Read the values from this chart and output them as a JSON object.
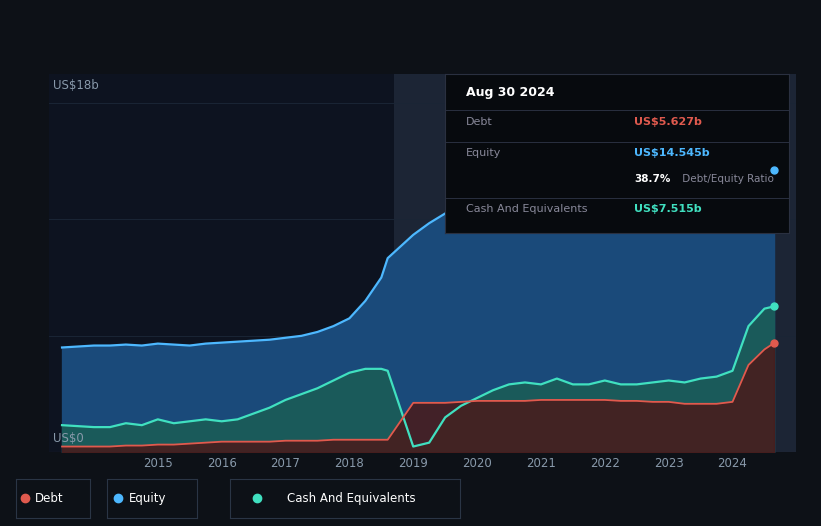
{
  "bg_color": "#0d1117",
  "plot_bg_color": "#0d1320",
  "grid_color": "#1a2535",
  "years": [
    2013.5,
    2014.0,
    2014.25,
    2014.5,
    2014.75,
    2015.0,
    2015.25,
    2015.5,
    2015.75,
    2016.0,
    2016.25,
    2016.5,
    2016.75,
    2017.0,
    2017.25,
    2017.5,
    2017.75,
    2018.0,
    2018.25,
    2018.5,
    2018.6,
    2019.0,
    2019.25,
    2019.5,
    2019.75,
    2020.0,
    2020.25,
    2020.5,
    2020.75,
    2021.0,
    2021.25,
    2021.5,
    2021.75,
    2022.0,
    2022.25,
    2022.5,
    2022.75,
    2023.0,
    2023.25,
    2023.5,
    2023.75,
    2024.0,
    2024.25,
    2024.5,
    2024.65
  ],
  "equity": [
    5.4,
    5.5,
    5.5,
    5.55,
    5.5,
    5.6,
    5.55,
    5.5,
    5.6,
    5.65,
    5.7,
    5.75,
    5.8,
    5.9,
    6.0,
    6.2,
    6.5,
    6.9,
    7.8,
    9.0,
    10.0,
    11.2,
    11.8,
    12.3,
    12.8,
    13.2,
    13.5,
    13.7,
    13.9,
    14.2,
    14.5,
    14.8,
    15.0,
    15.5,
    15.0,
    14.8,
    14.5,
    14.6,
    14.8,
    15.0,
    17.2,
    17.5,
    16.0,
    15.0,
    14.545
  ],
  "debt": [
    0.3,
    0.3,
    0.3,
    0.35,
    0.35,
    0.4,
    0.4,
    0.45,
    0.5,
    0.55,
    0.55,
    0.55,
    0.55,
    0.6,
    0.6,
    0.6,
    0.65,
    0.65,
    0.65,
    0.65,
    0.65,
    2.55,
    2.55,
    2.55,
    2.6,
    2.65,
    2.65,
    2.65,
    2.65,
    2.7,
    2.7,
    2.7,
    2.7,
    2.7,
    2.65,
    2.65,
    2.6,
    2.6,
    2.5,
    2.5,
    2.5,
    2.6,
    4.5,
    5.3,
    5.627
  ],
  "cash": [
    1.4,
    1.3,
    1.3,
    1.5,
    1.4,
    1.7,
    1.5,
    1.6,
    1.7,
    1.6,
    1.7,
    2.0,
    2.3,
    2.7,
    3.0,
    3.3,
    3.7,
    4.1,
    4.3,
    4.3,
    4.2,
    0.3,
    0.5,
    1.8,
    2.4,
    2.8,
    3.2,
    3.5,
    3.6,
    3.5,
    3.8,
    3.5,
    3.5,
    3.7,
    3.5,
    3.5,
    3.6,
    3.7,
    3.6,
    3.8,
    3.9,
    4.2,
    6.5,
    7.4,
    7.515
  ],
  "xlim": [
    2013.3,
    2025.0
  ],
  "ylim": [
    0,
    19.5
  ],
  "x_labels": [
    "2015",
    "2016",
    "2017",
    "2018",
    "2019",
    "2020",
    "2021",
    "2022",
    "2023",
    "2024"
  ],
  "x_ticks": [
    2015,
    2016,
    2017,
    2018,
    2019,
    2020,
    2021,
    2022,
    2023,
    2024
  ],
  "debt_color": "#e05a4e",
  "equity_color": "#4db8ff",
  "cash_color": "#40e0c0",
  "equity_fill_color": "#1a4a7a",
  "cash_fill_color": "#1a5a5a",
  "debt_fill_color": "#4a1a1a",
  "post2019_bg": "#1a2030",
  "tooltip_title": "Aug 30 2024",
  "tooltip_debt_label": "Debt",
  "tooltip_debt_value": "US$5.627b",
  "tooltip_equity_label": "Equity",
  "tooltip_equity_value": "US$14.545b",
  "tooltip_ratio_bold": "38.7%",
  "tooltip_ratio_rest": " Debt/Equity Ratio",
  "tooltip_cash_label": "Cash And Equivalents",
  "tooltip_cash_value": "US$7.515b",
  "ylabel_top": "US$18b",
  "ylabel_bot": "US$0"
}
